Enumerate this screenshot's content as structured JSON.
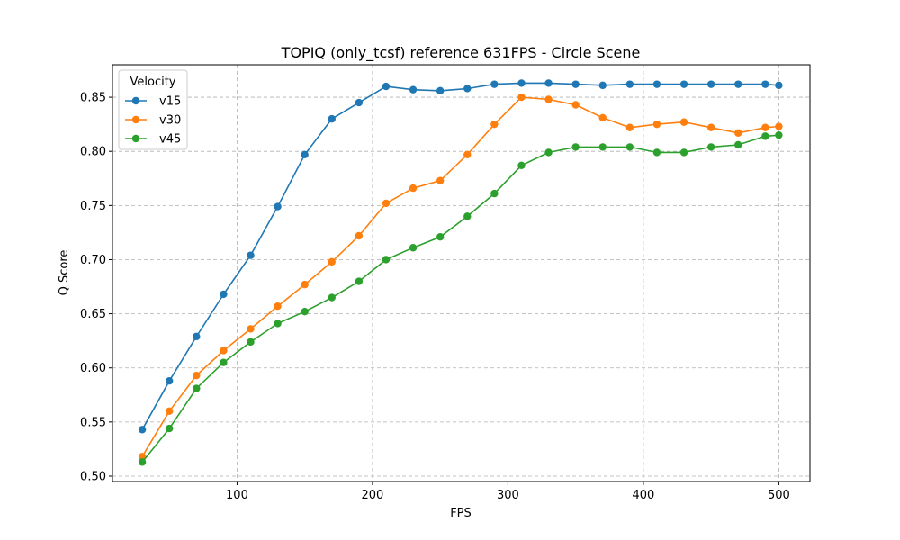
{
  "chart_data": {
    "type": "line",
    "title": "TOPIQ (only_tcsf) reference 631FPS - Circle Scene",
    "xlabel": "FPS",
    "ylabel": "Q Score",
    "xlim": [
      8,
      523
    ],
    "ylim": [
      0.495,
      0.88
    ],
    "xticks": [
      100,
      200,
      300,
      400,
      500
    ],
    "yticks": [
      0.5,
      0.55,
      0.6,
      0.65,
      0.7,
      0.75,
      0.8,
      0.85
    ],
    "ytick_labels": [
      "0.50",
      "0.55",
      "0.60",
      "0.65",
      "0.70",
      "0.75",
      "0.80",
      "0.85"
    ],
    "grid": true,
    "legend": {
      "title": "Velocity",
      "position": "top-left"
    },
    "x": [
      30,
      50,
      70,
      90,
      110,
      130,
      150,
      170,
      190,
      210,
      230,
      250,
      270,
      290,
      310,
      330,
      350,
      370,
      390,
      410,
      430,
      450,
      470,
      490,
      500
    ],
    "series": [
      {
        "name": "v15",
        "color": "#1f77b4",
        "values": [
          0.543,
          0.588,
          0.629,
          0.668,
          0.704,
          0.749,
          0.797,
          0.83,
          0.845,
          0.86,
          0.857,
          0.856,
          0.858,
          0.862,
          0.863,
          0.863,
          0.862,
          0.861,
          0.862,
          0.862,
          0.862,
          0.862,
          0.862,
          0.862,
          0.861
        ]
      },
      {
        "name": "v30",
        "color": "#ff7f0e",
        "values": [
          0.518,
          0.56,
          0.593,
          0.616,
          0.636,
          0.657,
          0.677,
          0.698,
          0.722,
          0.752,
          0.766,
          0.773,
          0.797,
          0.825,
          0.85,
          0.848,
          0.843,
          0.831,
          0.822,
          0.825,
          0.827,
          0.822,
          0.817,
          0.822,
          0.823
        ]
      },
      {
        "name": "v45",
        "color": "#2ca02c",
        "values": [
          0.513,
          0.544,
          0.581,
          0.605,
          0.624,
          0.641,
          0.652,
          0.665,
          0.68,
          0.7,
          0.711,
          0.721,
          0.74,
          0.761,
          0.787,
          0.799,
          0.804,
          0.804,
          0.804,
          0.799,
          0.799,
          0.804,
          0.806,
          0.814,
          0.815
        ]
      }
    ]
  }
}
